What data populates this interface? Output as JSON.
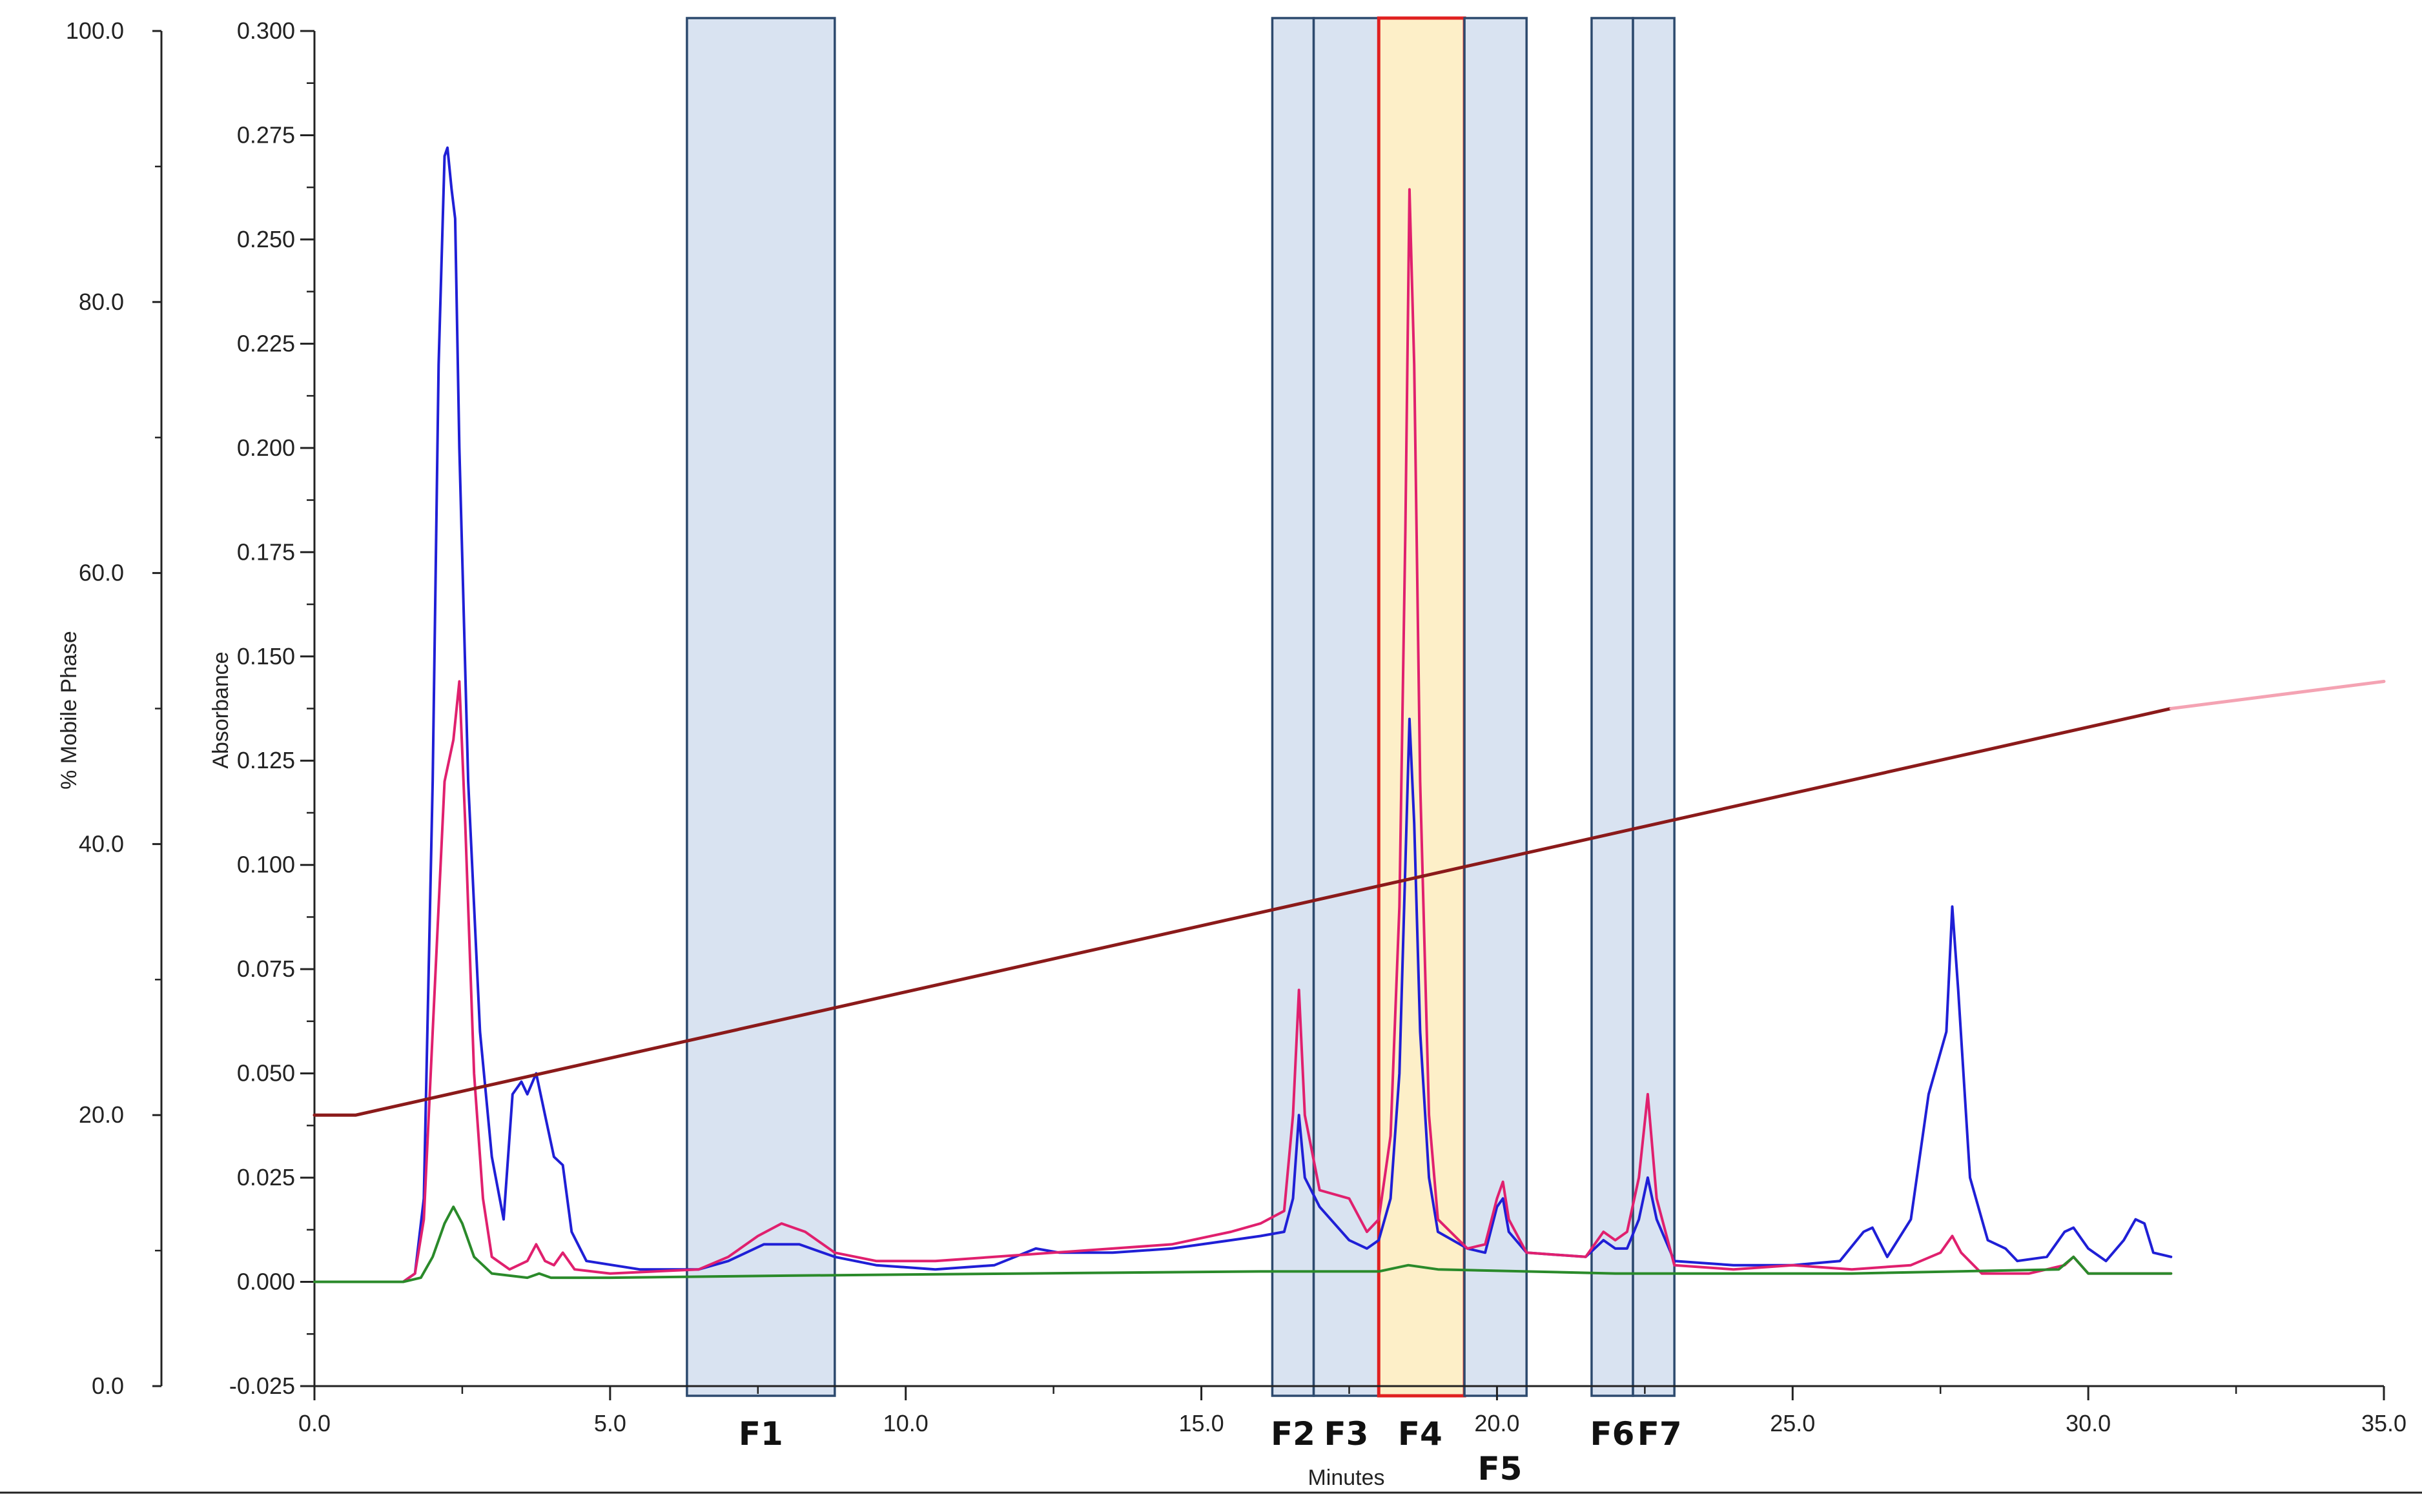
{
  "chart_data": {
    "type": "line",
    "title": "",
    "xlabel": "Minutes",
    "ylabel_left": "% Mobile Phase",
    "ylabel_right": "Absorbance",
    "xlim": [
      0,
      35
    ],
    "ylim_absorbance": [
      -0.025,
      0.3
    ],
    "ylim_mobile_phase": [
      0,
      100
    ],
    "grid": false,
    "x_ticks": [
      "0.0",
      "5.0",
      "10.0",
      "15.0",
      "20.0",
      "25.0",
      "30.0",
      "35.0"
    ],
    "y_ticks_absorbance": [
      "-0.025",
      "0.000",
      "0.025",
      "0.050",
      "0.075",
      "0.100",
      "0.125",
      "0.150",
      "0.175",
      "0.200",
      "0.225",
      "0.250",
      "0.275",
      "0.300"
    ],
    "y_ticks_mobile_phase": [
      "0.0",
      "20.0",
      "40.0",
      "60.0",
      "80.0",
      "100.0"
    ],
    "fractions": [
      {
        "label": "F1",
        "start": 6.3,
        "end": 8.8,
        "highlight": false
      },
      {
        "label": "F2",
        "start": 16.2,
        "end": 16.9,
        "highlight": false
      },
      {
        "label": "F3",
        "start": 16.9,
        "end": 18.0,
        "highlight": false
      },
      {
        "label": "F4",
        "start": 18.0,
        "end": 19.45,
        "highlight": true
      },
      {
        "label": "F5",
        "start": 19.45,
        "end": 20.5,
        "highlight": false
      },
      {
        "label": "F6",
        "start": 21.6,
        "end": 22.3,
        "highlight": false
      },
      {
        "label": "F7",
        "start": 22.3,
        "end": 23.0,
        "highlight": false
      }
    ],
    "series": [
      {
        "color": "#1f1fd6",
        "axis": "absorbance",
        "points": [
          [
            0,
            0
          ],
          [
            1.5,
            0
          ],
          [
            1.7,
            0.002
          ],
          [
            1.85,
            0.02
          ],
          [
            2.0,
            0.12
          ],
          [
            2.1,
            0.22
          ],
          [
            2.2,
            0.27
          ],
          [
            2.25,
            0.272
          ],
          [
            2.32,
            0.262
          ],
          [
            2.38,
            0.255
          ],
          [
            2.45,
            0.2
          ],
          [
            2.6,
            0.12
          ],
          [
            2.8,
            0.06
          ],
          [
            3.0,
            0.03
          ],
          [
            3.2,
            0.015
          ],
          [
            3.35,
            0.045
          ],
          [
            3.5,
            0.048
          ],
          [
            3.6,
            0.045
          ],
          [
            3.75,
            0.05
          ],
          [
            3.9,
            0.04
          ],
          [
            4.05,
            0.03
          ],
          [
            4.2,
            0.028
          ],
          [
            4.35,
            0.012
          ],
          [
            4.6,
            0.005
          ],
          [
            5.5,
            0.003
          ],
          [
            6.5,
            0.003
          ],
          [
            7.0,
            0.005
          ],
          [
            7.6,
            0.009
          ],
          [
            8.2,
            0.009
          ],
          [
            8.8,
            0.006
          ],
          [
            9.5,
            0.004
          ],
          [
            10.5,
            0.003
          ],
          [
            11.5,
            0.004
          ],
          [
            12.2,
            0.008
          ],
          [
            12.6,
            0.007
          ],
          [
            13.5,
            0.007
          ],
          [
            14.5,
            0.008
          ],
          [
            15.5,
            0.01
          ],
          [
            16.0,
            0.011
          ],
          [
            16.4,
            0.012
          ],
          [
            16.55,
            0.02
          ],
          [
            16.65,
            0.04
          ],
          [
            16.75,
            0.025
          ],
          [
            17.0,
            0.018
          ],
          [
            17.5,
            0.01
          ],
          [
            17.8,
            0.008
          ],
          [
            18.0,
            0.01
          ],
          [
            18.2,
            0.02
          ],
          [
            18.35,
            0.05
          ],
          [
            18.45,
            0.1
          ],
          [
            18.52,
            0.135
          ],
          [
            18.6,
            0.11
          ],
          [
            18.7,
            0.06
          ],
          [
            18.85,
            0.025
          ],
          [
            19.0,
            0.012
          ],
          [
            19.5,
            0.008
          ],
          [
            19.8,
            0.007
          ],
          [
            20.0,
            0.018
          ],
          [
            20.1,
            0.02
          ],
          [
            20.2,
            0.012
          ],
          [
            20.5,
            0.007
          ],
          [
            21.5,
            0.006
          ],
          [
            21.8,
            0.01
          ],
          [
            22.0,
            0.008
          ],
          [
            22.2,
            0.008
          ],
          [
            22.4,
            0.015
          ],
          [
            22.55,
            0.025
          ],
          [
            22.7,
            0.015
          ],
          [
            23.0,
            0.005
          ],
          [
            24.0,
            0.004
          ],
          [
            25.0,
            0.004
          ],
          [
            25.8,
            0.005
          ],
          [
            26.2,
            0.012
          ],
          [
            26.35,
            0.013
          ],
          [
            26.6,
            0.006
          ],
          [
            27.0,
            0.015
          ],
          [
            27.3,
            0.045
          ],
          [
            27.6,
            0.06
          ],
          [
            27.7,
            0.09
          ],
          [
            27.8,
            0.07
          ],
          [
            28.0,
            0.025
          ],
          [
            28.3,
            0.01
          ],
          [
            28.6,
            0.008
          ],
          [
            28.8,
            0.005
          ],
          [
            29.3,
            0.006
          ],
          [
            29.6,
            0.012
          ],
          [
            29.75,
            0.013
          ],
          [
            30.0,
            0.008
          ],
          [
            30.3,
            0.005
          ],
          [
            30.6,
            0.01
          ],
          [
            30.8,
            0.015
          ],
          [
            30.95,
            0.014
          ],
          [
            31.1,
            0.007
          ],
          [
            31.4,
            0.006
          ]
        ]
      },
      {
        "color": "#e0206e",
        "axis": "absorbance",
        "points": [
          [
            0,
            0
          ],
          [
            1.5,
            0
          ],
          [
            1.7,
            0.002
          ],
          [
            1.85,
            0.015
          ],
          [
            2.0,
            0.06
          ],
          [
            2.2,
            0.12
          ],
          [
            2.35,
            0.13
          ],
          [
            2.45,
            0.144
          ],
          [
            2.55,
            0.11
          ],
          [
            2.7,
            0.05
          ],
          [
            2.85,
            0.02
          ],
          [
            3.0,
            0.006
          ],
          [
            3.3,
            0.003
          ],
          [
            3.6,
            0.005
          ],
          [
            3.75,
            0.009
          ],
          [
            3.9,
            0.005
          ],
          [
            4.05,
            0.004
          ],
          [
            4.2,
            0.007
          ],
          [
            4.4,
            0.003
          ],
          [
            5.0,
            0.002
          ],
          [
            6.5,
            0.003
          ],
          [
            7.0,
            0.006
          ],
          [
            7.5,
            0.011
          ],
          [
            7.9,
            0.014
          ],
          [
            8.3,
            0.012
          ],
          [
            8.8,
            0.007
          ],
          [
            9.5,
            0.005
          ],
          [
            10.5,
            0.005
          ],
          [
            11.5,
            0.006
          ],
          [
            12.5,
            0.007
          ],
          [
            13.5,
            0.008
          ],
          [
            14.5,
            0.009
          ],
          [
            15.5,
            0.012
          ],
          [
            16.0,
            0.014
          ],
          [
            16.4,
            0.017
          ],
          [
            16.55,
            0.04
          ],
          [
            16.65,
            0.07
          ],
          [
            16.75,
            0.04
          ],
          [
            17.0,
            0.022
          ],
          [
            17.5,
            0.02
          ],
          [
            17.8,
            0.012
          ],
          [
            18.0,
            0.015
          ],
          [
            18.2,
            0.035
          ],
          [
            18.35,
            0.09
          ],
          [
            18.45,
            0.18
          ],
          [
            18.52,
            0.262
          ],
          [
            18.6,
            0.22
          ],
          [
            18.7,
            0.12
          ],
          [
            18.85,
            0.04
          ],
          [
            19.0,
            0.015
          ],
          [
            19.5,
            0.008
          ],
          [
            19.8,
            0.009
          ],
          [
            20.0,
            0.02
          ],
          [
            20.1,
            0.024
          ],
          [
            20.2,
            0.015
          ],
          [
            20.5,
            0.007
          ],
          [
            21.5,
            0.006
          ],
          [
            21.8,
            0.012
          ],
          [
            22.0,
            0.01
          ],
          [
            22.2,
            0.012
          ],
          [
            22.4,
            0.025
          ],
          [
            22.55,
            0.045
          ],
          [
            22.7,
            0.02
          ],
          [
            23.0,
            0.004
          ],
          [
            24.0,
            0.003
          ],
          [
            25.0,
            0.004
          ],
          [
            26.0,
            0.003
          ],
          [
            27.0,
            0.004
          ],
          [
            27.5,
            0.007
          ],
          [
            27.7,
            0.011
          ],
          [
            27.85,
            0.007
          ],
          [
            28.2,
            0.002
          ],
          [
            29.0,
            0.002
          ],
          [
            29.6,
            0.004
          ],
          [
            29.75,
            0.006
          ],
          [
            30.0,
            0.002
          ],
          [
            31.4,
            0.002
          ]
        ]
      },
      {
        "color": "#2a8a2a",
        "axis": "absorbance",
        "points": [
          [
            0,
            0
          ],
          [
            1.5,
            0
          ],
          [
            1.8,
            0.001
          ],
          [
            2.0,
            0.006
          ],
          [
            2.2,
            0.014
          ],
          [
            2.35,
            0.018
          ],
          [
            2.5,
            0.014
          ],
          [
            2.7,
            0.006
          ],
          [
            3.0,
            0.002
          ],
          [
            3.6,
            0.001
          ],
          [
            3.8,
            0.002
          ],
          [
            4.0,
            0.001
          ],
          [
            5.0,
            0.001
          ],
          [
            8.0,
            0.0015
          ],
          [
            12.0,
            0.002
          ],
          [
            16.0,
            0.0025
          ],
          [
            18.0,
            0.0025
          ],
          [
            18.5,
            0.004
          ],
          [
            19.0,
            0.003
          ],
          [
            22.0,
            0.002
          ],
          [
            26.0,
            0.002
          ],
          [
            29.5,
            0.003
          ],
          [
            29.75,
            0.006
          ],
          [
            30.0,
            0.002
          ],
          [
            31.4,
            0.002
          ]
        ]
      },
      {
        "color": "#8b1a1a",
        "axis": "mobile_phase",
        "points": [
          [
            0,
            20
          ],
          [
            0.7,
            20
          ],
          [
            31.4,
            50
          ]
        ]
      },
      {
        "color": "#f4a3b3",
        "axis": "mobile_phase",
        "points": [
          [
            31.4,
            50
          ],
          [
            35,
            52
          ]
        ]
      }
    ]
  }
}
